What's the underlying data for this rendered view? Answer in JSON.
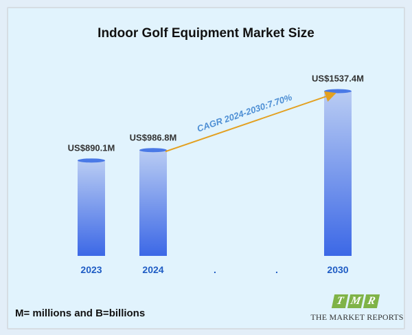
{
  "chart_data": {
    "type": "bar",
    "title": "Indoor Golf Equipment Market Size",
    "categories": [
      "2023",
      "2024",
      ".",
      ".",
      "2030"
    ],
    "values": [
      890.1,
      986.8,
      null,
      null,
      1537.4
    ],
    "value_labels": [
      "US$890.1M",
      "US$986.8M",
      "",
      "",
      "US$1537.4M"
    ],
    "annotation": "CAGR 2024-2030:7.70%",
    "xlabel": "",
    "ylabel": "",
    "grid": false,
    "colors": {
      "bar_top": "#4a79e6",
      "bar_gradient_start": "#b9ccf3",
      "bar_gradient_end": "#3c68e6",
      "tick_label": "#1f5cc4",
      "arrow": "#e3a020",
      "annotation": "#4e8fd4"
    }
  },
  "footnote": "M= millions and B=billions",
  "logo": {
    "letters": [
      "T",
      "M",
      "R"
    ],
    "name": "THE MARKET REPORTS"
  }
}
